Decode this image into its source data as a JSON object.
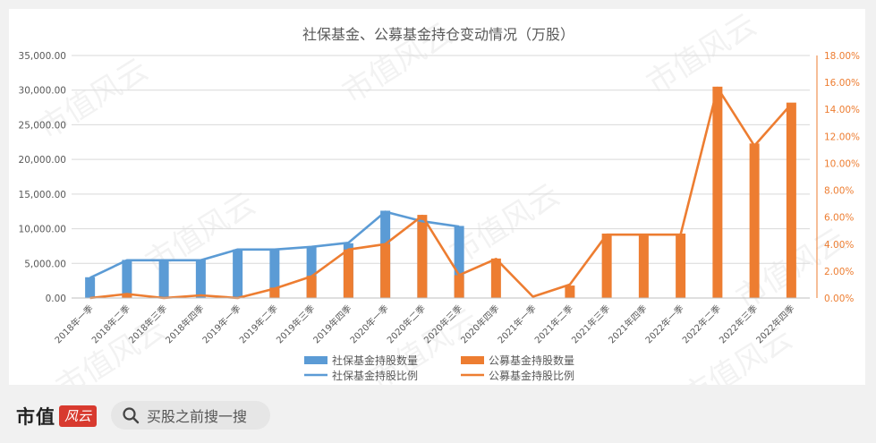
{
  "chart_data": {
    "type": "bar",
    "title": "社保基金、公募基金持仓变动情况（万股）",
    "categories": [
      "2018年一季",
      "2018年二季",
      "2018年三季",
      "2018年四季",
      "2019年一季",
      "2019年二季",
      "2019年三季",
      "2019年四季",
      "2020年一季",
      "2020年二季",
      "2020年三季",
      "2020年四季",
      "2021年一季",
      "2021年二季",
      "2021年三季",
      "2021年四季",
      "2022年一季",
      "2022年二季",
      "2022年三季",
      "2022年四季"
    ],
    "y_left": {
      "ylim": [
        0,
        35000
      ],
      "ticks": [
        "35,000.00",
        "30,000.00",
        "25,000.00",
        "20,000.00",
        "15,000.00",
        "10,000.00",
        "5,000.00",
        "0.00"
      ]
    },
    "y_right": {
      "ylim": [
        0,
        18
      ],
      "ticks": [
        "18.00%",
        "16.00%",
        "14.00%",
        "12.00%",
        "10.00%",
        "8.00%",
        "6.00%",
        "4.00%",
        "2.00%",
        "0.00%"
      ]
    },
    "series": [
      {
        "name": "社保基金持股数量",
        "kind": "bar",
        "axis": "left",
        "color": "#5b9bd5",
        "values": [
          3000,
          5500,
          5500,
          5500,
          7000,
          7000,
          7400,
          7900,
          12600,
          11200,
          10400,
          null,
          null,
          null,
          null,
          null,
          null,
          null,
          null,
          null
        ]
      },
      {
        "name": "公募基金持股数量",
        "kind": "bar",
        "axis": "left",
        "color": "#ed7d31",
        "values": [
          null,
          600,
          null,
          null,
          null,
          1500,
          3200,
          7000,
          7800,
          12000,
          3300,
          5700,
          null,
          1800,
          9300,
          9300,
          9300,
          30500,
          22300,
          28200
        ]
      },
      {
        "name": "社保基金持股比例",
        "kind": "line",
        "axis": "right",
        "color": "#5b9bd5",
        "values": [
          1.5,
          2.8,
          2.8,
          2.8,
          3.6,
          3.6,
          3.8,
          4.1,
          6.4,
          5.7,
          5.3,
          null,
          null,
          null,
          null,
          null,
          null,
          null,
          null,
          null
        ]
      },
      {
        "name": "公募基金持股比例",
        "kind": "line",
        "axis": "right",
        "color": "#ed7d31",
        "values": [
          0.0,
          0.3,
          0.0,
          0.2,
          0.0,
          0.7,
          1.6,
          3.6,
          4.0,
          6.1,
          1.7,
          2.9,
          0.1,
          1.0,
          4.7,
          4.7,
          4.7,
          15.6,
          11.3,
          14.4
        ]
      }
    ],
    "legend_position": "bottom",
    "grid": true
  },
  "watermark": "市值风云",
  "footer": {
    "logo_text": "市值",
    "logo_badge": "风云",
    "search_text": "买股之前搜一搜"
  }
}
